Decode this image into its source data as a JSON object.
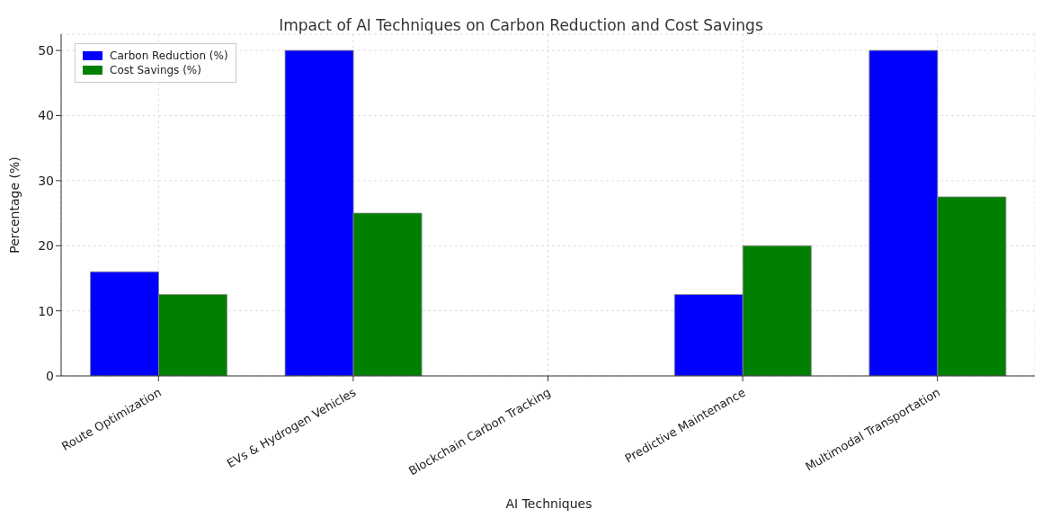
{
  "chart_data": {
    "type": "bar",
    "title": "Impact of AI Techniques on Carbon Reduction and Cost Savings",
    "xlabel": "AI Techniques",
    "ylabel": "Percentage (%)",
    "categories": [
      "Route Optimization",
      "EVs & Hydrogen Vehicles",
      "Blockchain Carbon Tracking",
      "Predictive Maintenance",
      "Multimodal Transportation"
    ],
    "series": [
      {
        "name": "Carbon Reduction (%)",
        "color": "#0000ff",
        "values": [
          16,
          50,
          0,
          12.5,
          50
        ]
      },
      {
        "name": "Cost Savings (%)",
        "color": "#008000",
        "values": [
          12.5,
          25,
          0,
          20,
          27.5
        ]
      }
    ],
    "ylim": [
      0,
      52.5
    ],
    "yticks": [
      0,
      10,
      20,
      30,
      40,
      50
    ],
    "grid": true,
    "legend": "top left"
  }
}
